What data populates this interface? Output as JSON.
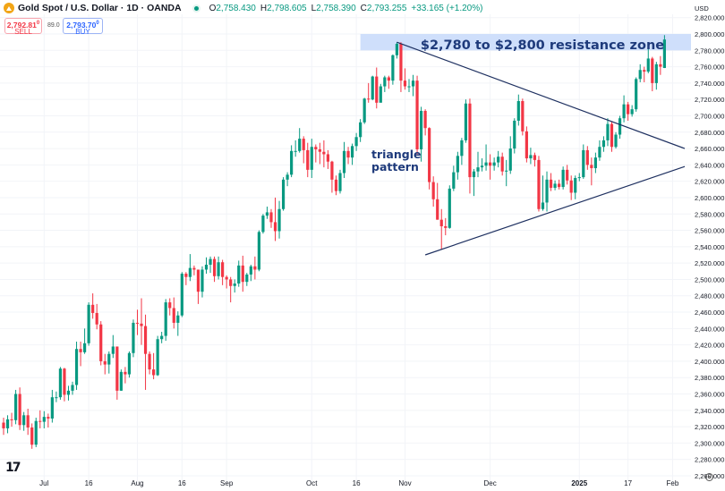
{
  "header": {
    "title": "Gold Spot / U.S. Dollar · 1D · OANDA",
    "ohlc": {
      "o_label": "O",
      "o": "2,758.430",
      "h_label": "H",
      "h": "2,798.605",
      "l_label": "L",
      "l": "2,758.390",
      "c_label": "C",
      "c": "2,793.255",
      "change": "+33.165 (+1.20%)"
    },
    "sell": {
      "price": "2,792.81",
      "sup": "0",
      "label": "SELL"
    },
    "spread": "89.0",
    "buy": {
      "price": "2,793.70",
      "sup": "0",
      "label": "BUY"
    },
    "currency": "USD"
  },
  "colors": {
    "up": "#089981",
    "down": "#f23645",
    "annotation": "#1e3a7b",
    "zone": "#cfdffb",
    "grid": "#f2f4f8"
  },
  "icons": {
    "logo": "gold-coin-icon",
    "status": "market-open-dot-icon",
    "brand": "tradingview-logo-icon",
    "settings": "gear-icon"
  },
  "chart_data": {
    "type": "candlestick",
    "y_ticks": [
      "2,820.000",
      "2,800.000",
      "2,780.000",
      "2,760.000",
      "2,740.000",
      "2,720.000",
      "2,700.000",
      "2,680.000",
      "2,660.000",
      "2,640.000",
      "2,620.000",
      "2,600.000",
      "2,580.000",
      "2,560.000",
      "2,540.000",
      "2,520.000",
      "2,500.000",
      "2,480.000",
      "2,460.000",
      "2,440.000",
      "2,420.000",
      "2,400.000",
      "2,380.000",
      "2,360.000",
      "2,340.000",
      "2,320.000",
      "2,300.000",
      "2,280.000",
      "2,260.000"
    ],
    "ylim": [
      2260,
      2800
    ],
    "x_ticks": [
      {
        "label": "Jul",
        "date": "2024-07-01",
        "bold": false
      },
      {
        "label": "16",
        "date": "2024-07-16",
        "bold": false
      },
      {
        "label": "Aug",
        "date": "2024-08-01",
        "bold": false
      },
      {
        "label": "16",
        "date": "2024-08-16",
        "bold": false
      },
      {
        "label": "Sep",
        "date": "2024-09-02",
        "bold": false
      },
      {
        "label": "Oct",
        "date": "2024-10-01",
        "bold": false
      },
      {
        "label": "16",
        "date": "2024-10-16",
        "bold": false
      },
      {
        "label": "Nov",
        "date": "2024-11-01",
        "bold": false
      },
      {
        "label": "Dec",
        "date": "2024-12-02",
        "bold": false
      },
      {
        "label": "2025",
        "date": "2025-01-01",
        "bold": true
      },
      {
        "label": "17",
        "date": "2025-01-17",
        "bold": false
      },
      {
        "label": "Feb",
        "date": "2025-02-03",
        "bold": false
      }
    ],
    "resistance_zone": {
      "low": 2780,
      "high": 2800,
      "start": "2024-10-17",
      "label": "$2,780 to $2,800 resistance zone"
    },
    "triangle": {
      "label_line1": "triangle",
      "label_line2": "pattern",
      "upper": {
        "start": {
          "date": "2024-10-30",
          "value": 2790
        },
        "end": {
          "date": "2025-02-06",
          "value": 2660
        }
      },
      "lower": {
        "start": {
          "date": "2024-11-08",
          "value": 2530
        },
        "end": {
          "date": "2025-02-06",
          "value": 2638
        }
      }
    },
    "columns": [
      "date",
      "open",
      "high",
      "low",
      "close"
    ],
    "candles": [
      [
        "2024-06-17",
        2325,
        2331,
        2310,
        2318
      ],
      [
        "2024-06-18",
        2318,
        2334,
        2312,
        2329
      ],
      [
        "2024-06-19",
        2329,
        2337,
        2320,
        2328
      ],
      [
        "2024-06-20",
        2328,
        2365,
        2323,
        2360
      ],
      [
        "2024-06-21",
        2360,
        2368,
        2316,
        2322
      ],
      [
        "2024-06-24",
        2322,
        2338,
        2315,
        2334
      ],
      [
        "2024-06-25",
        2334,
        2342,
        2310,
        2319
      ],
      [
        "2024-06-26",
        2319,
        2324,
        2293,
        2298
      ],
      [
        "2024-06-27",
        2298,
        2331,
        2295,
        2327
      ],
      [
        "2024-06-28",
        2327,
        2340,
        2318,
        2326
      ],
      [
        "2024-07-01",
        2326,
        2339,
        2318,
        2332
      ],
      [
        "2024-07-02",
        2332,
        2336,
        2319,
        2330
      ],
      [
        "2024-07-03",
        2330,
        2365,
        2325,
        2356
      ],
      [
        "2024-07-04",
        2356,
        2363,
        2350,
        2356
      ],
      [
        "2024-07-05",
        2356,
        2393,
        2353,
        2391
      ],
      [
        "2024-07-08",
        2391,
        2392,
        2351,
        2359
      ],
      [
        "2024-07-09",
        2359,
        2370,
        2352,
        2364
      ],
      [
        "2024-07-10",
        2364,
        2375,
        2359,
        2371
      ],
      [
        "2024-07-11",
        2371,
        2424,
        2365,
        2415
      ],
      [
        "2024-07-12",
        2415,
        2424,
        2394,
        2411
      ],
      [
        "2024-07-15",
        2411,
        2440,
        2409,
        2422
      ],
      [
        "2024-07-16",
        2422,
        2472,
        2419,
        2469
      ],
      [
        "2024-07-17",
        2469,
        2483,
        2452,
        2459
      ],
      [
        "2024-07-18",
        2459,
        2470,
        2439,
        2445
      ],
      [
        "2024-07-19",
        2445,
        2449,
        2395,
        2400
      ],
      [
        "2024-07-22",
        2400,
        2409,
        2384,
        2396
      ],
      [
        "2024-07-23",
        2396,
        2412,
        2385,
        2409
      ],
      [
        "2024-07-24",
        2409,
        2432,
        2404,
        2418
      ],
      [
        "2024-07-25",
        2418,
        2418,
        2353,
        2364
      ],
      [
        "2024-07-26",
        2364,
        2390,
        2364,
        2387
      ],
      [
        "2024-07-29",
        2387,
        2393,
        2373,
        2384
      ],
      [
        "2024-07-30",
        2384,
        2412,
        2380,
        2410
      ],
      [
        "2024-07-31",
        2410,
        2451,
        2405,
        2447
      ],
      [
        "2024-08-01",
        2447,
        2463,
        2432,
        2446
      ],
      [
        "2024-08-02",
        2446,
        2477,
        2420,
        2443
      ],
      [
        "2024-08-05",
        2443,
        2457,
        2365,
        2409
      ],
      [
        "2024-08-06",
        2409,
        2412,
        2384,
        2390
      ],
      [
        "2024-08-07",
        2390,
        2410,
        2378,
        2383
      ],
      [
        "2024-08-08",
        2383,
        2431,
        2382,
        2427
      ],
      [
        "2024-08-09",
        2427,
        2436,
        2422,
        2431
      ],
      [
        "2024-08-12",
        2431,
        2476,
        2425,
        2472
      ],
      [
        "2024-08-13",
        2472,
        2477,
        2456,
        2465
      ],
      [
        "2024-08-14",
        2465,
        2478,
        2440,
        2447
      ],
      [
        "2024-08-15",
        2447,
        2461,
        2431,
        2456
      ],
      [
        "2024-08-16",
        2456,
        2509,
        2454,
        2507
      ],
      [
        "2024-08-19",
        2507,
        2509,
        2493,
        2503
      ],
      [
        "2024-08-20",
        2503,
        2531,
        2498,
        2514
      ],
      [
        "2024-08-21",
        2514,
        2517,
        2505,
        2512
      ],
      [
        "2024-08-22",
        2512,
        2512,
        2470,
        2485
      ],
      [
        "2024-08-23",
        2485,
        2516,
        2478,
        2512
      ],
      [
        "2024-08-26",
        2512,
        2527,
        2507,
        2518
      ],
      [
        "2024-08-27",
        2518,
        2528,
        2508,
        2525
      ],
      [
        "2024-08-28",
        2525,
        2528,
        2497,
        2504
      ],
      [
        "2024-08-29",
        2504,
        2528,
        2500,
        2521
      ],
      [
        "2024-08-30",
        2521,
        2524,
        2493,
        2503
      ],
      [
        "2024-09-02",
        2503,
        2505,
        2489,
        2500
      ],
      [
        "2024-09-03",
        2500,
        2503,
        2472,
        2492
      ],
      [
        "2024-09-04",
        2492,
        2500,
        2484,
        2495
      ],
      [
        "2024-09-05",
        2495,
        2523,
        2491,
        2517
      ],
      [
        "2024-09-06",
        2517,
        2529,
        2485,
        2497
      ],
      [
        "2024-09-09",
        2497,
        2508,
        2492,
        2506
      ],
      [
        "2024-09-10",
        2506,
        2518,
        2498,
        2516
      ],
      [
        "2024-09-11",
        2516,
        2528,
        2500,
        2512
      ],
      [
        "2024-09-12",
        2512,
        2560,
        2510,
        2558
      ],
      [
        "2024-09-13",
        2558,
        2580,
        2556,
        2578
      ],
      [
        "2024-09-16",
        2578,
        2589,
        2574,
        2582
      ],
      [
        "2024-09-17",
        2582,
        2586,
        2563,
        2570
      ],
      [
        "2024-09-18",
        2570,
        2600,
        2547,
        2559
      ],
      [
        "2024-09-19",
        2559,
        2596,
        2550,
        2586
      ],
      [
        "2024-09-20",
        2586,
        2625,
        2584,
        2622
      ],
      [
        "2024-09-23",
        2622,
        2631,
        2614,
        2628
      ],
      [
        "2024-09-24",
        2628,
        2664,
        2625,
        2657
      ],
      [
        "2024-09-25",
        2657,
        2670,
        2650,
        2657
      ],
      [
        "2024-09-26",
        2657,
        2685,
        2655,
        2672
      ],
      [
        "2024-09-27",
        2672,
        2675,
        2642,
        2658
      ],
      [
        "2024-09-30",
        2658,
        2667,
        2625,
        2634
      ],
      [
        "2024-10-01",
        2634,
        2672,
        2624,
        2662
      ],
      [
        "2024-10-02",
        2662,
        2665,
        2643,
        2659
      ],
      [
        "2024-10-03",
        2659,
        2667,
        2641,
        2656
      ],
      [
        "2024-10-04",
        2656,
        2670,
        2637,
        2653
      ],
      [
        "2024-10-07",
        2653,
        2658,
        2635,
        2644
      ],
      [
        "2024-10-08",
        2644,
        2645,
        2606,
        2622
      ],
      [
        "2024-10-09",
        2622,
        2627,
        2603,
        2608
      ],
      [
        "2024-10-10",
        2608,
        2634,
        2605,
        2630
      ],
      [
        "2024-10-11",
        2630,
        2668,
        2624,
        2657
      ],
      [
        "2024-10-14",
        2657,
        2662,
        2641,
        2649
      ],
      [
        "2024-10-15",
        2649,
        2666,
        2640,
        2663
      ],
      [
        "2024-10-16",
        2663,
        2679,
        2657,
        2674
      ],
      [
        "2024-10-17",
        2674,
        2696,
        2668,
        2692
      ],
      [
        "2024-10-18",
        2692,
        2722,
        2690,
        2721
      ],
      [
        "2024-10-21",
        2721,
        2740,
        2716,
        2720
      ],
      [
        "2024-10-22",
        2720,
        2749,
        2719,
        2748
      ],
      [
        "2024-10-23",
        2748,
        2759,
        2709,
        2716
      ],
      [
        "2024-10-24",
        2716,
        2739,
        2717,
        2736
      ],
      [
        "2024-10-25",
        2736,
        2749,
        2729,
        2747
      ],
      [
        "2024-10-28",
        2747,
        2749,
        2733,
        2743
      ],
      [
        "2024-10-29",
        2743,
        2775,
        2738,
        2774
      ],
      [
        "2024-10-30",
        2774,
        2790,
        2770,
        2788
      ],
      [
        "2024-10-31",
        2788,
        2790,
        2729,
        2743
      ],
      [
        "2024-11-01",
        2743,
        2758,
        2732,
        2736
      ],
      [
        "2024-11-04",
        2736,
        2745,
        2729,
        2736
      ],
      [
        "2024-11-05",
        2736,
        2750,
        2724,
        2743
      ],
      [
        "2024-11-06",
        2743,
        2749,
        2652,
        2659
      ],
      [
        "2024-11-07",
        2659,
        2711,
        2644,
        2706
      ],
      [
        "2024-11-08",
        2706,
        2708,
        2676,
        2685
      ],
      [
        "2024-11-11",
        2685,
        2686,
        2610,
        2619
      ],
      [
        "2024-11-12",
        2619,
        2626,
        2589,
        2598
      ],
      [
        "2024-11-13",
        2598,
        2618,
        2573,
        2573
      ],
      [
        "2024-11-14",
        2573,
        2586,
        2537,
        2565
      ],
      [
        "2024-11-15",
        2565,
        2575,
        2554,
        2563
      ],
      [
        "2024-11-18",
        2563,
        2615,
        2562,
        2611
      ],
      [
        "2024-11-19",
        2611,
        2639,
        2608,
        2631
      ],
      [
        "2024-11-20",
        2631,
        2656,
        2622,
        2651
      ],
      [
        "2024-11-21",
        2651,
        2673,
        2640,
        2670
      ],
      [
        "2024-11-22",
        2670,
        2720,
        2667,
        2715
      ],
      [
        "2024-11-25",
        2715,
        2721,
        2605,
        2625
      ],
      [
        "2024-11-26",
        2625,
        2635,
        2602,
        2632
      ],
      [
        "2024-11-27",
        2632,
        2656,
        2625,
        2637
      ],
      [
        "2024-11-28",
        2637,
        2648,
        2632,
        2639
      ],
      [
        "2024-11-29",
        2639,
        2665,
        2633,
        2643
      ],
      [
        "2024-12-02",
        2643,
        2653,
        2622,
        2639
      ],
      [
        "2024-12-03",
        2639,
        2649,
        2633,
        2643
      ],
      [
        "2024-12-04",
        2643,
        2657,
        2637,
        2650
      ],
      [
        "2024-12-05",
        2650,
        2655,
        2627,
        2632
      ],
      [
        "2024-12-06",
        2632,
        2646,
        2614,
        2633
      ],
      [
        "2024-12-09",
        2633,
        2675,
        2629,
        2660
      ],
      [
        "2024-12-10",
        2660,
        2697,
        2654,
        2694
      ],
      [
        "2024-12-11",
        2694,
        2726,
        2688,
        2718
      ],
      [
        "2024-12-12",
        2718,
        2721,
        2676,
        2681
      ],
      [
        "2024-12-13",
        2681,
        2687,
        2643,
        2648
      ],
      [
        "2024-12-16",
        2648,
        2661,
        2641,
        2652
      ],
      [
        "2024-12-17",
        2652,
        2655,
        2638,
        2646
      ],
      [
        "2024-12-18",
        2646,
        2651,
        2583,
        2586
      ],
      [
        "2024-12-19",
        2586,
        2627,
        2584,
        2594
      ],
      [
        "2024-12-20",
        2594,
        2632,
        2583,
        2622
      ],
      [
        "2024-12-23",
        2622,
        2630,
        2608,
        2612
      ],
      [
        "2024-12-24",
        2612,
        2621,
        2609,
        2617
      ],
      [
        "2024-12-25",
        2617,
        2622,
        2610,
        2613
      ],
      [
        "2024-12-26",
        2613,
        2638,
        2610,
        2634
      ],
      [
        "2024-12-27",
        2634,
        2640,
        2616,
        2621
      ],
      [
        "2024-12-30",
        2621,
        2627,
        2597,
        2606
      ],
      [
        "2024-12-31",
        2606,
        2627,
        2598,
        2624
      ],
      [
        "2025-01-01",
        2624,
        2630,
        2620,
        2625
      ],
      [
        "2025-01-02",
        2625,
        2665,
        2623,
        2658
      ],
      [
        "2025-01-03",
        2658,
        2663,
        2634,
        2640
      ],
      [
        "2025-01-06",
        2640,
        2649,
        2615,
        2636
      ],
      [
        "2025-01-07",
        2636,
        2655,
        2630,
        2649
      ],
      [
        "2025-01-08",
        2649,
        2670,
        2645,
        2662
      ],
      [
        "2025-01-09",
        2662,
        2675,
        2656,
        2670
      ],
      [
        "2025-01-10",
        2670,
        2697,
        2663,
        2690
      ],
      [
        "2025-01-13",
        2690,
        2693,
        2656,
        2662
      ],
      [
        "2025-01-14",
        2662,
        2680,
        2660,
        2677
      ],
      [
        "2025-01-15",
        2677,
        2700,
        2672,
        2697
      ],
      [
        "2025-01-16",
        2697,
        2725,
        2692,
        2714
      ],
      [
        "2025-01-17",
        2714,
        2717,
        2694,
        2702
      ],
      [
        "2025-01-20",
        2702,
        2713,
        2699,
        2708
      ],
      [
        "2025-01-21",
        2708,
        2747,
        2705,
        2745
      ],
      [
        "2025-01-22",
        2745,
        2763,
        2741,
        2756
      ],
      [
        "2025-01-23",
        2756,
        2760,
        2741,
        2754
      ],
      [
        "2025-01-24",
        2754,
        2786,
        2752,
        2770
      ],
      [
        "2025-01-27",
        2770,
        2772,
        2730,
        2740
      ],
      [
        "2025-01-28",
        2740,
        2766,
        2732,
        2763
      ],
      [
        "2025-01-29",
        2763,
        2773,
        2750,
        2760
      ],
      [
        "2025-01-30",
        2758.43,
        2798.605,
        2758.39,
        2793.255
      ]
    ]
  }
}
